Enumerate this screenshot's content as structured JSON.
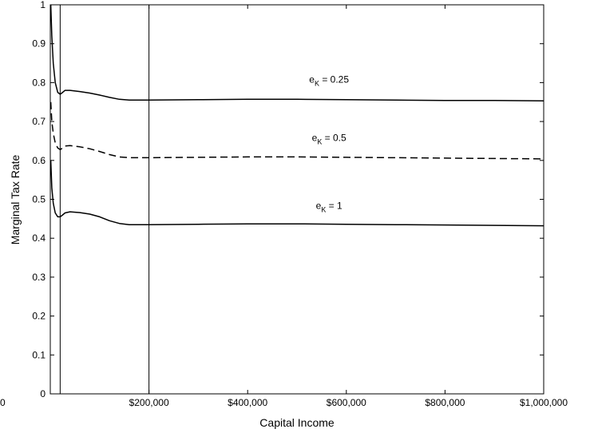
{
  "chart_data": {
    "type": "line",
    "xlabel": "Capital Income",
    "ylabel": "Marginal Tax Rate",
    "xlim": [
      0,
      1000000
    ],
    "ylim": [
      0,
      1
    ],
    "x_ticks": [
      0,
      200000,
      400000,
      600000,
      800000,
      1000000
    ],
    "x_tick_labels": [
      "0",
      "$200,000",
      "$400,000",
      "$600,000",
      "$800,000",
      "$1,000,000"
    ],
    "y_ticks": [
      0,
      0.1,
      0.2,
      0.3,
      0.4,
      0.5,
      0.6,
      0.7,
      0.8,
      0.9,
      1
    ],
    "y_tick_labels": [
      "0",
      "0.1",
      "0.2",
      "0.3",
      "0.4",
      "0.5",
      "0.6",
      "0.7",
      "0.8",
      "0.9",
      "1"
    ],
    "grid": false,
    "vertical_lines": [
      20000,
      200000
    ],
    "series": [
      {
        "label_main": "e",
        "label_sub": "K",
        "label_suffix": " = 0.25",
        "line_style": "solid",
        "label_at": [
          565000,
          0.8
        ],
        "x": [
          1000,
          3000,
          6000,
          10000,
          15000,
          20000,
          25000,
          30000,
          40000,
          60000,
          80000,
          100000,
          120000,
          140000,
          160000,
          200000,
          300000,
          400000,
          500000,
          600000,
          700000,
          800000,
          900000,
          1000000
        ],
        "y": [
          1.0,
          0.92,
          0.85,
          0.8,
          0.775,
          0.77,
          0.775,
          0.78,
          0.78,
          0.777,
          0.773,
          0.768,
          0.762,
          0.757,
          0.755,
          0.755,
          0.756,
          0.757,
          0.757,
          0.756,
          0.755,
          0.754,
          0.754,
          0.753
        ]
      },
      {
        "label_main": "e",
        "label_sub": "K",
        "label_suffix": " = 0.5",
        "line_style": "dashed",
        "label_at": [
          565000,
          0.65
        ],
        "x": [
          1000,
          3000,
          6000,
          10000,
          15000,
          20000,
          25000,
          30000,
          40000,
          60000,
          80000,
          100000,
          120000,
          140000,
          160000,
          200000,
          300000,
          400000,
          500000,
          600000,
          700000,
          800000,
          900000,
          1000000
        ],
        "y": [
          0.75,
          0.7,
          0.67,
          0.645,
          0.632,
          0.628,
          0.632,
          0.637,
          0.638,
          0.635,
          0.63,
          0.623,
          0.615,
          0.609,
          0.607,
          0.607,
          0.608,
          0.609,
          0.609,
          0.608,
          0.607,
          0.606,
          0.605,
          0.604
        ]
      },
      {
        "label_main": "e",
        "label_sub": "K",
        "label_suffix": " = 1",
        "line_style": "solid",
        "label_at": [
          565000,
          0.475
        ],
        "x": [
          1000,
          3000,
          6000,
          10000,
          15000,
          20000,
          25000,
          30000,
          40000,
          60000,
          80000,
          100000,
          120000,
          140000,
          160000,
          200000,
          300000,
          400000,
          500000,
          600000,
          700000,
          800000,
          900000,
          1000000
        ],
        "y": [
          0.6,
          0.53,
          0.49,
          0.465,
          0.455,
          0.455,
          0.46,
          0.465,
          0.468,
          0.466,
          0.462,
          0.455,
          0.445,
          0.438,
          0.435,
          0.435,
          0.436,
          0.437,
          0.437,
          0.436,
          0.435,
          0.434,
          0.433,
          0.432
        ]
      }
    ]
  }
}
